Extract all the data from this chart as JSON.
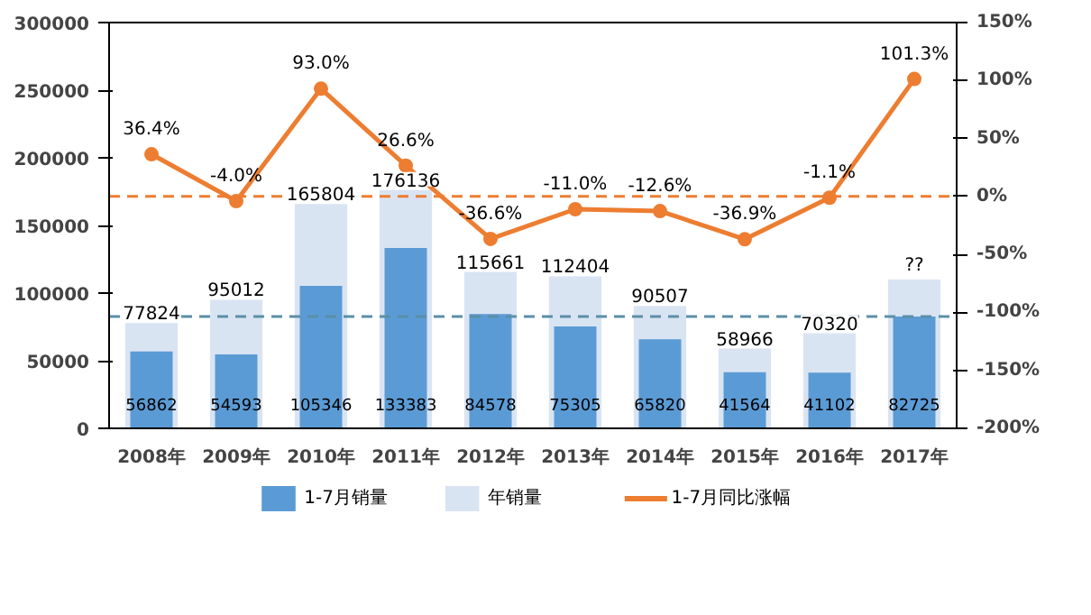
{
  "chart_data": {
    "type": "bar",
    "categories": [
      "2008年",
      "2009年",
      "2010年",
      "2011年",
      "2012年",
      "2013年",
      "2014年",
      "2015年",
      "2016年",
      "2017年"
    ],
    "series": [
      {
        "name": "年销量",
        "color": "#d9e4f3",
        "values": [
          77824,
          95012,
          165804,
          176136,
          115661,
          112404,
          90507,
          58966,
          70320,
          110000
        ],
        "value_labels": [
          "77824",
          "95012",
          "165804",
          "176136",
          "115661",
          "112404",
          "90507",
          "58966",
          "70320",
          "??"
        ]
      },
      {
        "name": "1-7月销量",
        "color": "#5b9bd5",
        "values": [
          56862,
          54593,
          105346,
          133383,
          84578,
          75305,
          65820,
          41564,
          41102,
          82725
        ],
        "value_labels": [
          "56862",
          "54593",
          "105346",
          "133383",
          "84578",
          "75305",
          "65820",
          "41564",
          "41102",
          "82725"
        ]
      },
      {
        "name": "1-7月同比涨幅",
        "type": "line",
        "axis": "y2",
        "color": "#ed7d31",
        "values": [
          36.4,
          -4.0,
          93.0,
          26.6,
          -36.6,
          -11.0,
          -12.6,
          -36.9,
          -1.1,
          101.3
        ],
        "value_labels": [
          "36.4%",
          "-4.0%",
          "93.0%",
          "26.6%",
          "-36.6%",
          "-11.0%",
          "-12.6%",
          "-36.9%",
          "-1.1%",
          "101.3%"
        ]
      }
    ],
    "ylim": [
      0,
      300000
    ],
    "yticks": [
      0,
      50000,
      100000,
      150000,
      200000,
      250000,
      300000
    ],
    "y2lim": [
      -200,
      150
    ],
    "y2ticks": [
      {
        "value": -200,
        "label": "-200%"
      },
      {
        "value": -150,
        "label": "-150%"
      },
      {
        "value": -100,
        "label": "-100%"
      },
      {
        "value": -50,
        "label": "-50%"
      },
      {
        "value": 0,
        "label": "0%"
      },
      {
        "value": 50,
        "label": "50%"
      },
      {
        "value": 100,
        "label": "100%"
      },
      {
        "value": 150,
        "label": "150%"
      }
    ],
    "ref_lines": [
      {
        "axis": "y2",
        "value": 0,
        "color": "#ed7d31",
        "line_style": "dashed"
      },
      {
        "axis": "y",
        "value": 82725,
        "color": "#5b8fa8",
        "line_style": "dashed"
      }
    ],
    "marker": "circle",
    "grid": false,
    "legend": "bottom"
  }
}
